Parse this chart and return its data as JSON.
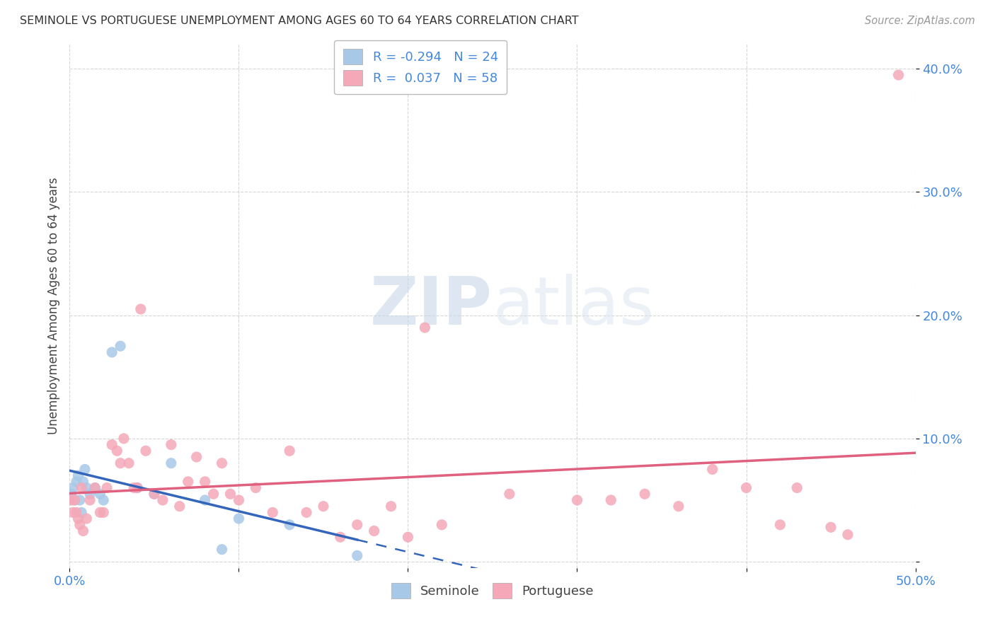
{
  "title": "SEMINOLE VS PORTUGUESE UNEMPLOYMENT AMONG AGES 60 TO 64 YEARS CORRELATION CHART",
  "source": "Source: ZipAtlas.com",
  "ylabel": "Unemployment Among Ages 60 to 64 years",
  "xlim": [
    0.0,
    0.5
  ],
  "ylim": [
    -0.005,
    0.42
  ],
  "seminole_color": "#a8c8e8",
  "portuguese_color": "#f4a8b8",
  "seminole_line_color": "#3366bb",
  "portuguese_line_color": "#e06080",
  "R_seminole": -0.294,
  "N_seminole": 24,
  "R_portuguese": 0.037,
  "N_portuguese": 58,
  "watermark_zip": "ZIP",
  "watermark_atlas": "atlas",
  "background_color": "#ffffff",
  "grid_color": "#cccccc",
  "seminole_x": [
    0.001,
    0.002,
    0.003,
    0.004,
    0.005,
    0.006,
    0.007,
    0.008,
    0.009,
    0.01,
    0.012,
    0.015,
    0.018,
    0.02,
    0.025,
    0.03,
    0.04,
    0.05,
    0.06,
    0.08,
    0.09,
    0.1,
    0.13,
    0.17
  ],
  "seminole_y": [
    0.055,
    0.06,
    0.05,
    0.065,
    0.07,
    0.05,
    0.04,
    0.065,
    0.075,
    0.06,
    0.055,
    0.06,
    0.055,
    0.05,
    0.17,
    0.175,
    0.06,
    0.055,
    0.08,
    0.05,
    0.01,
    0.035,
    0.03,
    0.005
  ],
  "portuguese_x": [
    0.001,
    0.002,
    0.003,
    0.004,
    0.005,
    0.006,
    0.007,
    0.008,
    0.01,
    0.012,
    0.015,
    0.018,
    0.02,
    0.022,
    0.025,
    0.028,
    0.03,
    0.032,
    0.035,
    0.038,
    0.04,
    0.042,
    0.045,
    0.05,
    0.055,
    0.06,
    0.065,
    0.07,
    0.075,
    0.08,
    0.085,
    0.09,
    0.095,
    0.1,
    0.11,
    0.12,
    0.13,
    0.14,
    0.15,
    0.16,
    0.17,
    0.18,
    0.19,
    0.2,
    0.21,
    0.22,
    0.26,
    0.3,
    0.32,
    0.34,
    0.36,
    0.38,
    0.4,
    0.42,
    0.43,
    0.45,
    0.46,
    0.49
  ],
  "portuguese_y": [
    0.05,
    0.04,
    0.05,
    0.04,
    0.035,
    0.03,
    0.06,
    0.025,
    0.035,
    0.05,
    0.06,
    0.04,
    0.04,
    0.06,
    0.095,
    0.09,
    0.08,
    0.1,
    0.08,
    0.06,
    0.06,
    0.205,
    0.09,
    0.055,
    0.05,
    0.095,
    0.045,
    0.065,
    0.085,
    0.065,
    0.055,
    0.08,
    0.055,
    0.05,
    0.06,
    0.04,
    0.09,
    0.04,
    0.045,
    0.02,
    0.03,
    0.025,
    0.045,
    0.02,
    0.19,
    0.03,
    0.055,
    0.05,
    0.05,
    0.055,
    0.045,
    0.075,
    0.06,
    0.03,
    0.06,
    0.028,
    0.022,
    0.395
  ]
}
